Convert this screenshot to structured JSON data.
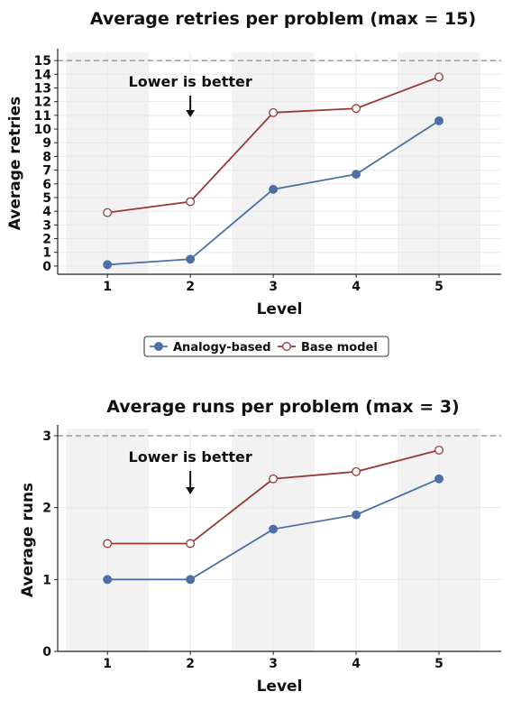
{
  "colors": {
    "analogy": "#4c6fa5",
    "base": "#953a35",
    "ref_line": "#888888",
    "band": "#f2f2f2",
    "grid": "#e8e8e8"
  },
  "legend": {
    "entries": [
      "Analogy-based",
      "Base model"
    ],
    "placement": "center-between-charts"
  },
  "chart_data": [
    {
      "type": "line",
      "title": "Average retries per problem (max = 15)",
      "xlabel": "Level",
      "ylabel": "Average retries",
      "categories": [
        "1",
        "2",
        "3",
        "4",
        "5"
      ],
      "x": [
        1,
        2,
        3,
        4,
        5
      ],
      "yticks": [
        "0",
        "1",
        "2",
        "3",
        "4",
        "5",
        "6",
        "7",
        "8",
        "9",
        "10",
        "11",
        "12",
        "13",
        "14",
        "15"
      ],
      "ylim": [
        -0.6,
        15.6
      ],
      "max_line": 15,
      "annotation": "Lower is better",
      "series": [
        {
          "name": "Analogy-based",
          "marker": "filled-circle",
          "values": [
            0.1,
            0.5,
            5.6,
            6.7,
            10.6
          ]
        },
        {
          "name": "Base model",
          "marker": "open-circle",
          "values": [
            3.9,
            4.7,
            11.2,
            11.5,
            13.8
          ]
        }
      ]
    },
    {
      "type": "line",
      "title": "Average runs per problem (max = 3)",
      "xlabel": "Level",
      "ylabel": "Average runs",
      "categories": [
        "1",
        "2",
        "3",
        "4",
        "5"
      ],
      "x": [
        1,
        2,
        3,
        4,
        5
      ],
      "yticks": [
        "0",
        "1",
        "2",
        "3"
      ],
      "ylim": [
        0,
        3.1
      ],
      "max_line": 3,
      "annotation": "Lower is better",
      "series": [
        {
          "name": "Analogy-based",
          "marker": "filled-circle",
          "values": [
            1.0,
            1.0,
            1.7,
            1.9,
            2.4
          ]
        },
        {
          "name": "Base model",
          "marker": "open-circle",
          "values": [
            1.5,
            1.5,
            2.4,
            2.5,
            2.8
          ]
        }
      ]
    }
  ]
}
